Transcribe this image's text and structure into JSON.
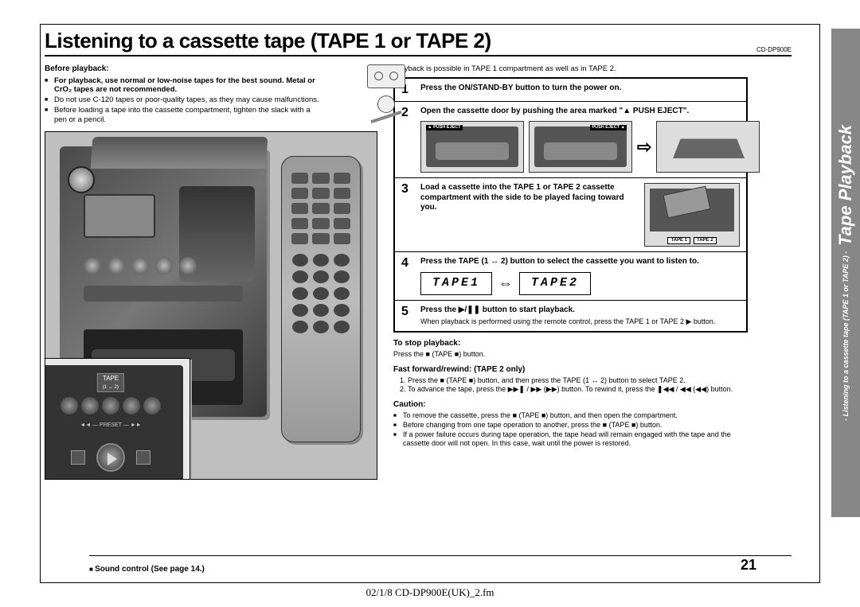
{
  "header": {
    "title": "Listening to a cassette tape (TAPE 1 or TAPE 2)",
    "model": "CD-DP900E"
  },
  "left": {
    "before_heading": "Before playback:",
    "bullets": [
      "For playback, use normal or low-noise tapes for the best sound. Metal or CrO₂ tapes are not recommended.",
      "Do not use C-120 tapes or poor-quality tapes, as they may cause malfunctions.",
      "Before loading a tape into the cassette compartment, tighten the slack with a pen or a pencil."
    ],
    "inset_tape_label": "TAPE",
    "inset_tape_range": "(1 ↔ 2)",
    "inset_preset": "◄◄ — PRESET — ►►"
  },
  "right": {
    "intro": "Playback is possible in TAPE 1 compartment as well as in TAPE 2.",
    "steps": [
      {
        "num": "1",
        "text": "Press the ON/STAND-BY button to turn the power on."
      },
      {
        "num": "2",
        "text": "Open the cassette door by pushing the area marked \"▲ PUSH EJECT\".",
        "fig_labels": {
          "push_left": "▲ PUSH EJECT",
          "push_right": "PUSH EJECT ▲"
        }
      },
      {
        "num": "3",
        "text": "Load a cassette into the TAPE 1 or TAPE 2 cassette compartment with the side to be played facing toward you.",
        "tape1": "TAPE 1",
        "tape2": "TAPE 2"
      },
      {
        "num": "4",
        "text": "Press the TAPE (1 ↔ 2) button to select the cassette you want to listen to.",
        "lcd1": "TAPE1",
        "lcd2": "TAPE2"
      },
      {
        "num": "5",
        "text": "Press the ▶/❚❚ button to start playback.",
        "note": "When playback is performed using the remote control, press the TAPE 1 or TAPE 2 ▶ button."
      }
    ],
    "stop": {
      "heading": "To stop playback:",
      "text": "Press the ■ (TAPE ■) button."
    },
    "ffrw": {
      "heading": "Fast forward/rewind: (TAPE 2 only)",
      "items": [
        "Press the ■ (TAPE ■) button, and then press the TAPE (1 ↔ 2) button to select TAPE 2.",
        "To advance the tape, press the ▶▶❚ / ▶▶ (▶▶) button. To rewind it, press the ❚◀◀ / ◀◀ (◀◀) button."
      ]
    },
    "caution": {
      "heading": "Caution:",
      "items": [
        "To remove the cassette, press the ■ (TAPE ■) button, and then open the compartment.",
        "Before changing from one tape operation to another, press the ■ (TAPE ■) button.",
        "If a power failure occurs during tape operation, the tape head will remain engaged with the tape and the cassette door will not open. In this case, wait until the power is restored."
      ]
    }
  },
  "sidebar": {
    "main": "Tape Playback",
    "sub": "- Listening to a cassette tape (TAPE 1 or TAPE 2) -"
  },
  "footer": {
    "sound": "Sound control (See page 14.)",
    "page": "21",
    "docline": "02/1/8      CD-DP900E(UK)_2.fm"
  },
  "style": {
    "page_bg": "#ffffff",
    "sidebar_bg": "#878787",
    "sidebar_fg": "#ffffff",
    "border": "#000000",
    "title_fontsize": 26,
    "body_fontsize": 9.5,
    "stepnum_fontsize": 16,
    "lcd_font": "Courier New"
  }
}
